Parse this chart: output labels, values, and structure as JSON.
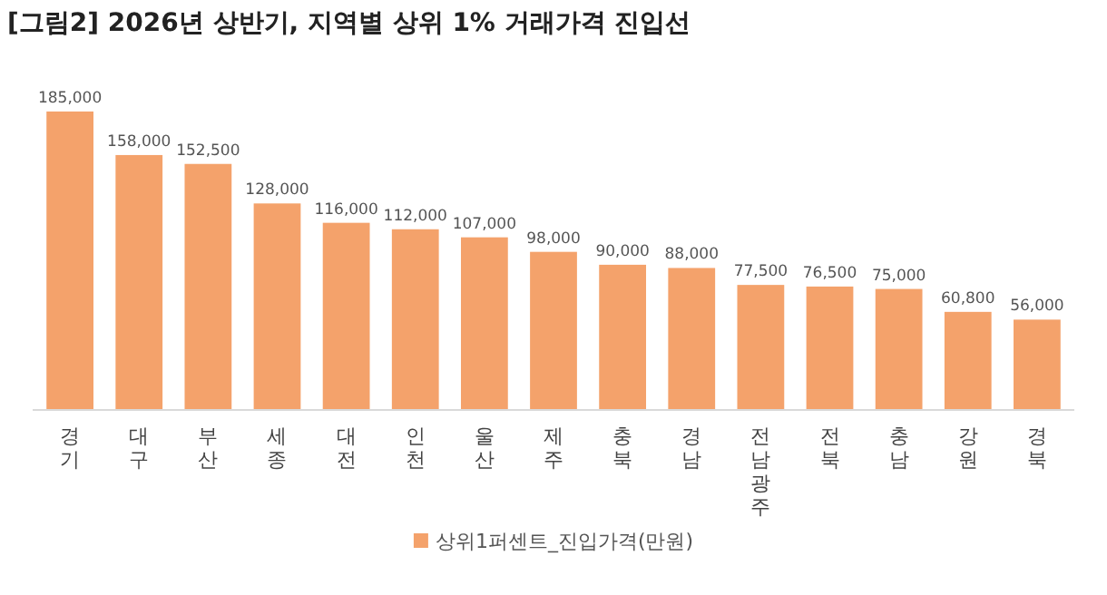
{
  "chart_data": {
    "type": "bar",
    "title": "[그림2] 2026년 상반기, 지역별 상위 1% 거래가격 진입선",
    "categories": [
      "경기",
      "대구",
      "부산",
      "세종",
      "대전",
      "인천",
      "울산",
      "제주",
      "충북",
      "경남",
      "전남광주",
      "전북",
      "충남",
      "강원",
      "경북"
    ],
    "series": [
      {
        "name": "상위1퍼센트_진입가격(만원)",
        "color": "#f4a26b",
        "values": [
          185000,
          158000,
          152500,
          128000,
          116000,
          112000,
          107000,
          98000,
          90000,
          88000,
          77500,
          76500,
          75000,
          60800,
          56000
        ],
        "value_labels": [
          "185,000",
          "158,000",
          "152,500",
          "128,000",
          "116,000",
          "112,000",
          "107,000",
          "98,000",
          "90,000",
          "88,000",
          "77,500",
          "76,500",
          "75,000",
          "60,800",
          "56,000"
        ]
      }
    ],
    "legend": "bottom"
  }
}
